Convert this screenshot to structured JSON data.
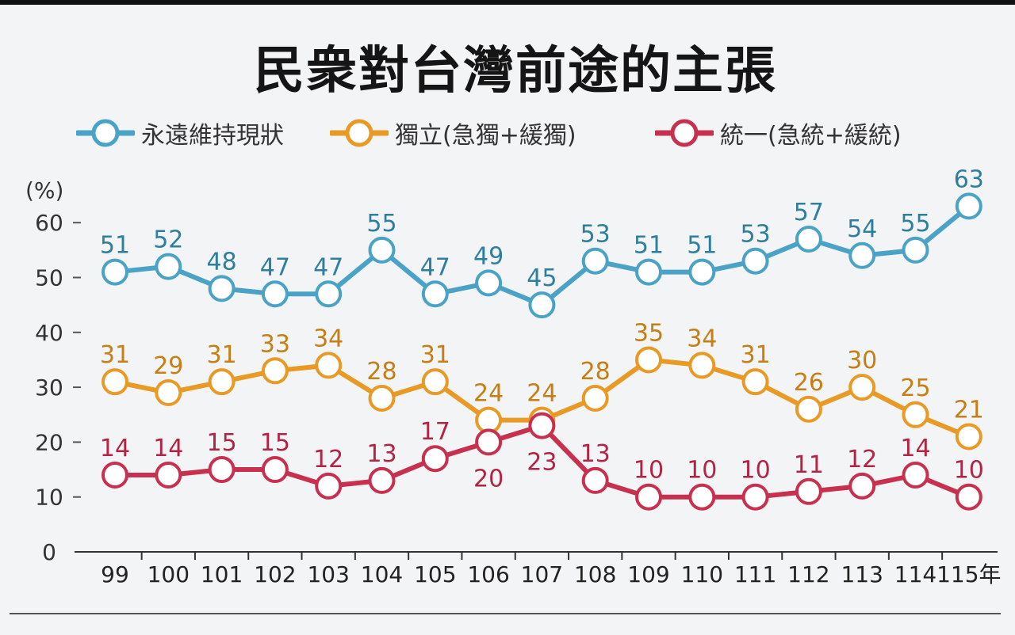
{
  "title": "民衆對台灣前途的主張",
  "chart_data": {
    "type": "line",
    "title": "民衆對台灣前途的主張",
    "ylabel": "(%)",
    "xlabel": "",
    "x_suffix": "年",
    "categories": [
      "99",
      "100",
      "101",
      "102",
      "103",
      "104",
      "105",
      "106",
      "107",
      "108",
      "109",
      "110",
      "111",
      "112",
      "113",
      "114",
      "115"
    ],
    "ylim": [
      0,
      60
    ],
    "yticks": [
      0,
      10,
      20,
      30,
      40,
      50,
      60
    ],
    "grid": false,
    "legend_position": "top",
    "series": [
      {
        "name": "永遠維持現狀",
        "color": "#4aa3c6",
        "label_color": "#2e7f9f",
        "values": [
          51,
          52,
          48,
          47,
          47,
          55,
          47,
          49,
          45,
          53,
          51,
          51,
          53,
          57,
          54,
          55,
          63
        ]
      },
      {
        "name": "獨立(急獨+緩獨)",
        "color": "#e89a25",
        "label_color": "#c77e12",
        "values": [
          31,
          29,
          31,
          33,
          34,
          28,
          31,
          24,
          24,
          28,
          35,
          34,
          31,
          26,
          30,
          25,
          21
        ]
      },
      {
        "name": "統一(急統+緩統)",
        "color": "#c8304f",
        "label_color": "#b32444",
        "values": [
          14,
          14,
          15,
          15,
          12,
          13,
          17,
          20,
          23,
          13,
          10,
          10,
          10,
          11,
          12,
          14,
          10
        ]
      }
    ]
  }
}
